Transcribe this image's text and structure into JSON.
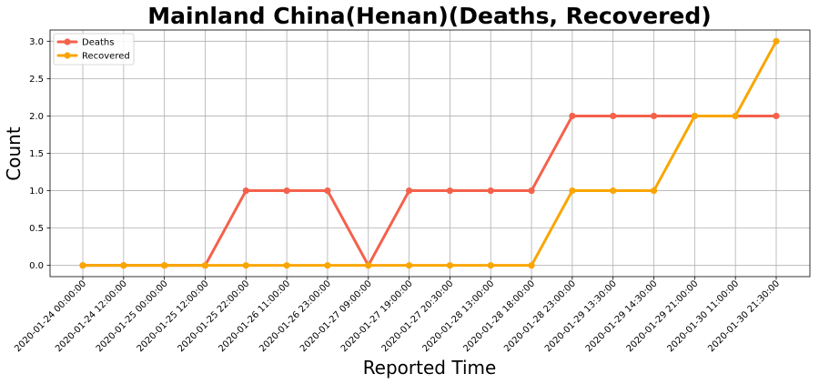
{
  "chart_data": {
    "type": "line",
    "title": "Mainland China(Henan)(Deaths, Recovered)",
    "xlabel": "Reported Time",
    "ylabel": "Count",
    "categories": [
      "2020-01-24 00:00:00",
      "2020-01-24 12:00:00",
      "2020-01-25 00:00:00",
      "2020-01-25 12:00:00",
      "2020-01-25 22:00:00",
      "2020-01-26 11:00:00",
      "2020-01-26 23:00:00",
      "2020-01-27 09:00:00",
      "2020-01-27 19:00:00",
      "2020-01-27 20:30:00",
      "2020-01-28 13:00:00",
      "2020-01-28 18:00:00",
      "2020-01-28 23:00:00",
      "2020-01-29 13:30:00",
      "2020-01-29 14:30:00",
      "2020-01-29 21:00:00",
      "2020-01-30 11:00:00",
      "2020-01-30 21:30:00"
    ],
    "series": [
      {
        "name": "Deaths",
        "color": "#f4614b",
        "values": [
          0,
          0,
          0,
          0,
          1,
          1,
          1,
          0,
          1,
          1,
          1,
          1,
          2,
          2,
          2,
          2,
          2,
          2
        ]
      },
      {
        "name": "Recovered",
        "color": "#f9a602",
        "values": [
          0,
          0,
          0,
          0,
          0,
          0,
          0,
          0,
          0,
          0,
          0,
          0,
          1,
          1,
          1,
          2,
          2,
          3
        ]
      }
    ],
    "ylim": [
      -0.15,
      3.15
    ],
    "yticks": [
      "0.0",
      "0.5",
      "1.0",
      "1.5",
      "2.0",
      "2.5",
      "3.0"
    ],
    "grid": true,
    "legend_position": "top-left"
  }
}
